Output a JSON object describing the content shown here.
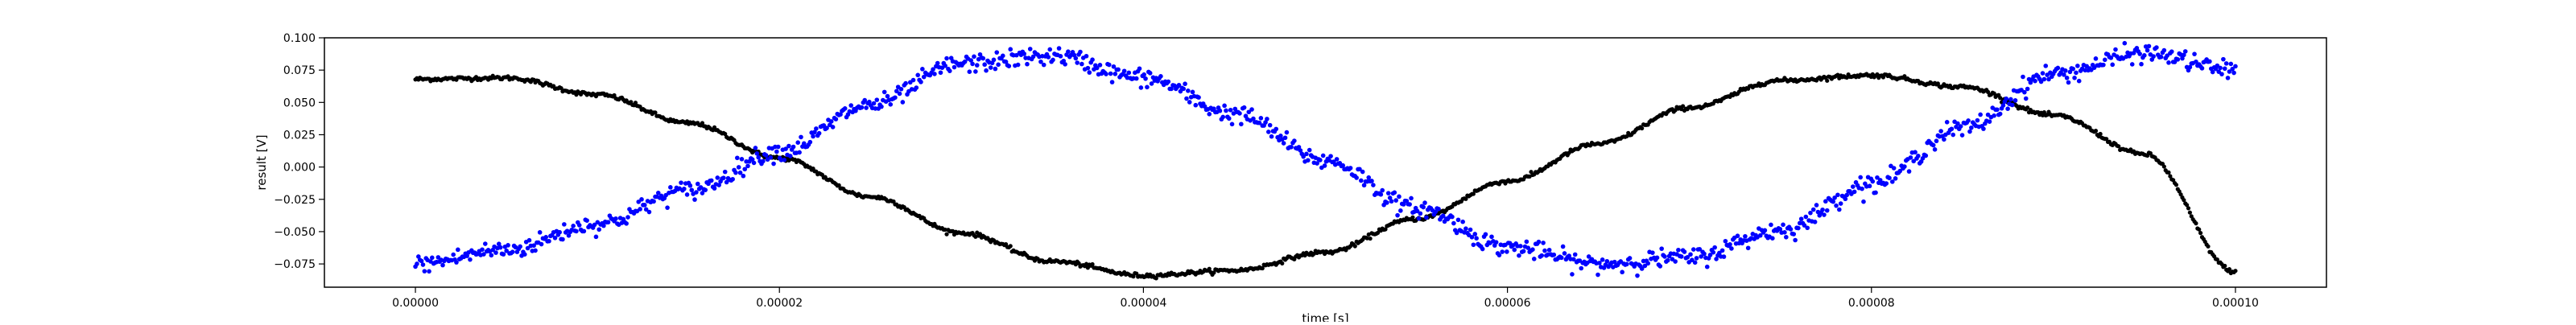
{
  "chart_data": {
    "type": "scatter",
    "title": "",
    "xlabel": "time [s]",
    "ylabel": "result [V]",
    "xlim": [
      -5e-06,
      0.000105
    ],
    "ylim": [
      -0.093,
      0.1
    ],
    "xticks": [
      0,
      2e-05,
      4e-05,
      6e-05,
      8e-05,
      0.0001
    ],
    "xtick_labels": [
      "0.00000",
      "0.00002",
      "0.00004",
      "0.00006",
      "0.00008",
      "0.00010"
    ],
    "yticks": [
      -0.075,
      -0.05,
      -0.025,
      0,
      0.025,
      0.05,
      0.075,
      0.1
    ],
    "ytick_labels": [
      "−0.075",
      "−0.050",
      "−0.025",
      "0.000",
      "0.025",
      "0.050",
      "0.075",
      "0.100"
    ],
    "grid": false,
    "legend": "none",
    "series": [
      {
        "color": "#000000",
        "noise": 0.0008,
        "x": [
          0,
          5e-06,
          1e-05,
          1.5e-05,
          2e-05,
          2.5e-05,
          3e-05,
          3.5e-05,
          4e-05,
          4.5e-05,
          5e-05,
          5.5e-05,
          6e-05,
          6.5e-05,
          7e-05,
          7.5e-05,
          8e-05,
          8.5e-05,
          9e-05,
          9.5e-05,
          0.0001
        ],
        "y": [
          0.068,
          0.069,
          0.056,
          0.034,
          0.007,
          -0.023,
          -0.051,
          -0.073,
          -0.084,
          -0.08,
          -0.066,
          -0.04,
          -0.011,
          0.018,
          0.046,
          0.067,
          0.071,
          0.062,
          0.04,
          0.01,
          -0.081
        ]
      },
      {
        "color": "#0000ff",
        "noise": 0.0035,
        "x": [
          0,
          5e-06,
          1e-05,
          1.5e-05,
          2e-05,
          2.5e-05,
          3e-05,
          3.5e-05,
          4e-05,
          4.5e-05,
          5e-05,
          5.5e-05,
          6e-05,
          6.5e-05,
          7e-05,
          7.5e-05,
          8e-05,
          8.5e-05,
          9e-05,
          9.5e-05,
          0.0001
        ],
        "y": [
          -0.075,
          -0.064,
          -0.044,
          -0.018,
          0.012,
          0.048,
          0.08,
          0.086,
          0.069,
          0.041,
          0.005,
          -0.032,
          -0.062,
          -0.075,
          -0.07,
          -0.049,
          -0.013,
          0.03,
          0.072,
          0.088,
          0.075
        ]
      }
    ]
  }
}
